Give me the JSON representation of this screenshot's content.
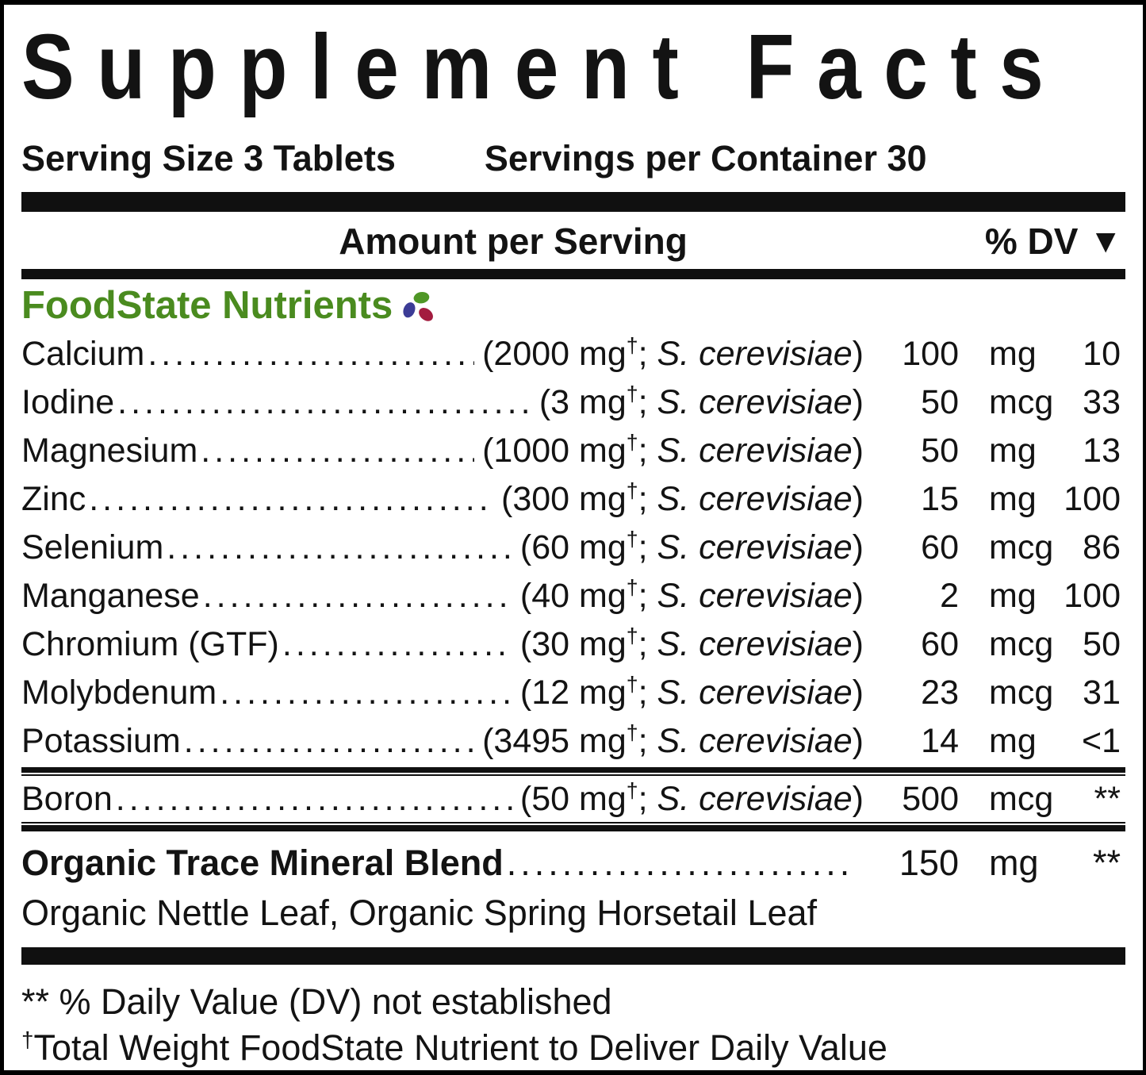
{
  "title": "Supplement Facts",
  "serving": {
    "size": "Serving Size 3 Tablets",
    "per_container": "Servings per Container 30"
  },
  "header": {
    "amount": "Amount per Serving",
    "dv": "% DV",
    "dv_arrow": "▼"
  },
  "section": {
    "heading": "FoodState Nutrients",
    "heading_color": "#4a8b1f",
    "logo_icon": "three-leaf-pinwheel",
    "logo_colors": {
      "green": "#4f9726",
      "blue": "#3c3c96",
      "red": "#a31c3f"
    }
  },
  "table": {
    "punct": {
      "open": "(",
      "sep": "; ",
      "close": ")"
    },
    "rows": [
      {
        "name": "Calcium",
        "weight": "2000 mg",
        "dagger": "†",
        "species": "S. cerevisiae",
        "amount": "100",
        "unit": "mg",
        "dv": "10"
      },
      {
        "name": "Iodine",
        "weight": "3 mg",
        "dagger": "†",
        "species": "S. cerevisiae",
        "amount": "50",
        "unit": "mcg",
        "dv": "33"
      },
      {
        "name": "Magnesium",
        "weight": "1000 mg",
        "dagger": "†",
        "species": "S. cerevisiae",
        "amount": "50",
        "unit": "mg",
        "dv": "13"
      },
      {
        "name": "Zinc",
        "weight": "300 mg",
        "dagger": "†",
        "species": "S. cerevisiae",
        "amount": "15",
        "unit": "mg",
        "dv": "100"
      },
      {
        "name": "Selenium",
        "weight": "60 mg",
        "dagger": "†",
        "species": "S. cerevisiae",
        "amount": "60",
        "unit": "mcg",
        "dv": "86"
      },
      {
        "name": "Manganese",
        "weight": "40 mg",
        "dagger": "†",
        "species": "S. cerevisiae",
        "amount": "2",
        "unit": "mg",
        "dv": "100"
      },
      {
        "name": "Chromium (GTF)",
        "weight": "30 mg",
        "dagger": "†",
        "species": "S. cerevisiae",
        "amount": "60",
        "unit": "mcg",
        "dv": "50"
      },
      {
        "name": "Molybdenum",
        "weight": "12 mg",
        "dagger": "†",
        "species": "S. cerevisiae",
        "amount": "23",
        "unit": "mcg",
        "dv": "31"
      },
      {
        "name": "Potassium",
        "weight": "3495 mg",
        "dagger": "†",
        "species": "S. cerevisiae",
        "amount": "14",
        "unit": "mg",
        "dv": "<1"
      }
    ],
    "boron": {
      "name": "Boron",
      "weight": "50 mg",
      "dagger": "†",
      "species": "S. cerevisiae",
      "amount": "500",
      "unit": "mcg",
      "dv": "**"
    },
    "blend": {
      "name": "Organic Trace Mineral Blend",
      "amount": "150",
      "unit": "mg",
      "dv": "**",
      "ingredients": "Organic Nettle Leaf, Organic Spring Horsetail Leaf"
    }
  },
  "footnotes": {
    "dv_note": "** % Daily Value (DV) not established",
    "dagger_symbol": "†",
    "dagger_note": "Total Weight FoodState Nutrient to Deliver Daily Value"
  }
}
